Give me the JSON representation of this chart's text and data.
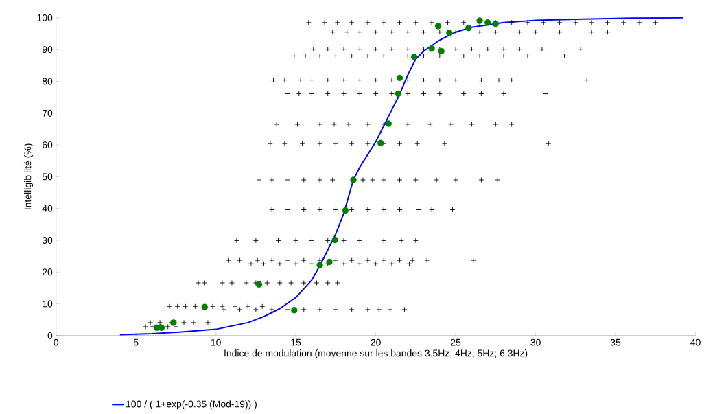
{
  "chart_data": {
    "type": "scatter",
    "xlabel": "Indice de modulation (moyenne sur les bandes 3.5Hz; 4Hz; 5Hz; 6.3Hz)",
    "ylabel": "Intelligibilité (%)",
    "xlim": [
      0,
      40
    ],
    "ylim": [
      0,
      100
    ],
    "xticks": [
      0,
      5,
      10,
      15,
      20,
      25,
      30,
      35,
      40
    ],
    "yticks": [
      0,
      10,
      20,
      30,
      40,
      50,
      60,
      70,
      80,
      90,
      100
    ],
    "grid": false,
    "legend": "bottom",
    "series": [
      {
        "marker": "cross",
        "color": "#000000",
        "x": [
          15.8,
          16.8,
          17.6,
          18.5,
          19.5,
          20.5,
          21.5,
          22.5,
          23.5,
          24.5,
          25.5,
          26.5,
          27.5,
          28.5,
          29.5,
          30.5,
          31.5,
          32.5,
          33.5,
          34.5,
          35.5,
          36.5,
          37.5,
          17.3,
          18.2,
          19.0,
          20,
          21,
          22,
          23,
          24,
          25,
          26.5,
          27.5,
          29,
          30,
          31.5,
          33.5,
          34.5,
          16.1,
          17,
          18,
          19,
          20,
          21,
          22,
          23,
          24,
          25,
          26,
          27,
          28,
          29,
          30.4,
          32.8,
          14.9,
          15.6,
          16.5,
          17.5,
          18.5,
          19.5,
          20.5,
          22,
          23,
          24,
          25.5,
          26.5,
          28,
          29.5,
          31.8,
          13.6,
          14.3,
          15.3,
          16,
          17,
          18,
          19,
          20,
          21,
          22,
          23,
          24,
          25,
          26.6,
          27.7,
          28.5,
          33.2,
          14.5,
          15.2,
          16,
          17,
          18,
          19,
          20,
          21,
          22,
          23,
          24,
          25.5,
          26.6,
          28,
          30.6,
          13.8,
          15.1,
          16.5,
          17.4,
          18.3,
          19.5,
          20.5,
          22,
          23.4,
          24.7,
          26,
          27.5,
          28.5,
          13.4,
          14.3,
          15.4,
          16.5,
          17.5,
          18.5,
          19.5,
          20.5,
          21.5,
          22.6,
          24.3,
          30.8,
          12.7,
          13.5,
          14.5,
          15.5,
          16.5,
          17.3,
          19.2,
          19.8,
          20.5,
          21.5,
          22.5,
          23.8,
          25,
          26.6,
          27.6,
          13.5,
          14.5,
          15.5,
          16.5,
          17.5,
          18.5,
          19.5,
          20.5,
          21.5,
          22.7,
          23.5,
          24.8,
          11.3,
          12.5,
          13.9,
          15,
          16,
          17,
          18,
          19,
          20.5,
          21.6,
          22.5,
          10.8,
          11.5,
          12.6,
          13.5,
          14.5,
          15.5,
          16.5,
          17.5,
          18.5,
          19.5,
          20.5,
          21.5,
          22.3,
          23.2,
          26.1,
          12.2,
          13,
          14,
          15,
          16,
          17,
          18,
          19,
          20,
          21,
          22.1,
          8.9,
          9.3,
          10.4,
          11,
          11.9,
          12.5,
          13.2,
          14,
          14.7,
          15.5,
          16.3,
          17,
          17.6,
          7.1,
          7.6,
          8.1,
          8.7,
          9.8,
          10.4,
          11.2,
          12,
          12.9,
          10.5,
          11.5,
          12.5,
          13.5,
          14.5,
          15.5,
          16.5,
          17.5,
          18.5,
          19.5,
          20.2,
          20.9,
          21.8,
          5.9,
          6.5,
          7.2,
          8,
          8.6,
          9.5,
          5.6,
          6,
          6.5,
          7,
          7.5
        ],
        "values": [
          98.5,
          98.5,
          98.5,
          98.5,
          98.5,
          98.5,
          98.5,
          98.5,
          98.5,
          98.5,
          98.5,
          98.5,
          98.5,
          98.5,
          98.5,
          98.5,
          98.5,
          98.5,
          98.5,
          98.5,
          98.5,
          98.5,
          98.5,
          95.5,
          95.5,
          95.5,
          95.5,
          95.5,
          95.5,
          95.5,
          95.5,
          95.5,
          95.5,
          95.5,
          95.5,
          95.5,
          95.5,
          95.5,
          95.5,
          90.1,
          90.1,
          90.1,
          90.1,
          90.1,
          90.1,
          90.1,
          90.1,
          90.1,
          90.1,
          90.1,
          90.1,
          90.1,
          90.1,
          90.1,
          90.1,
          88,
          88,
          88,
          88,
          88,
          88,
          88,
          88,
          88,
          88,
          88,
          88,
          88,
          88,
          88,
          80.4,
          80.4,
          80.4,
          80.4,
          80.4,
          80.4,
          80.4,
          80.4,
          80.4,
          80.4,
          80.4,
          80.4,
          80.4,
          80.4,
          80.4,
          80.4,
          80.4,
          76.1,
          76.1,
          76.1,
          76.1,
          76.1,
          76.1,
          76.1,
          76.1,
          76.1,
          76.1,
          76.1,
          76.1,
          76.1,
          76.1,
          76.1,
          66.5,
          66.5,
          66.5,
          66.5,
          66.5,
          66.5,
          66.5,
          66.5,
          66.5,
          66.5,
          66.5,
          66.5,
          66.5,
          60.4,
          60.4,
          60.4,
          60.4,
          60.4,
          60.4,
          60.4,
          60.4,
          60.4,
          60.4,
          60.4,
          60.4,
          49,
          49,
          49,
          49,
          49,
          49,
          49,
          49,
          49,
          49,
          49,
          49,
          49,
          49,
          49,
          39.6,
          39.6,
          39.6,
          39.6,
          39.6,
          39.6,
          39.6,
          39.6,
          39.6,
          39.6,
          39.6,
          39.6,
          29.9,
          29.9,
          29.9,
          29.9,
          29.9,
          29.9,
          29.9,
          29.9,
          29.9,
          29.9,
          29.9,
          23.7,
          23.7,
          23.7,
          23.7,
          23.7,
          23.7,
          23.7,
          23.7,
          23.7,
          23.7,
          23.7,
          23.7,
          23.7,
          23.7,
          23.7,
          22.6,
          22.6,
          22.6,
          22.6,
          22.6,
          22.6,
          22.6,
          22.6,
          22.6,
          22.6,
          22.6,
          16.6,
          16.6,
          16.6,
          16.6,
          16.6,
          16.6,
          16.6,
          16.6,
          16.6,
          16.6,
          16.6,
          16.6,
          16.6,
          9.2,
          9.2,
          9.2,
          9.2,
          9.2,
          9.2,
          9.2,
          9.2,
          9.2,
          8.2,
          8.2,
          8.2,
          8.2,
          8.2,
          8.2,
          8.2,
          8.2,
          8.2,
          8.2,
          8.2,
          8.2,
          8.2,
          4.1,
          4.1,
          4.1,
          4.1,
          4.1,
          4.1,
          2.8,
          2.8,
          2.8,
          2.8,
          2.8
        ]
      },
      {
        "marker": "circle",
        "color": "#008000",
        "x": [
          6.3,
          6.6,
          7.35,
          9.3,
          12.7,
          14.9,
          16.5,
          17.1,
          17.45,
          18.1,
          18.6,
          20.3,
          20.8,
          21.4,
          21.5,
          22.4,
          23.5,
          24.1,
          23.9,
          24.6,
          25.8,
          26.5,
          27.0,
          27.5
        ],
        "values": [
          2.5,
          2.5,
          4.1,
          9.0,
          16.1,
          8.0,
          22.2,
          23.2,
          30.1,
          39.4,
          49,
          60.6,
          66.7,
          76.1,
          81.1,
          87.7,
          90.3,
          89.5,
          97.4,
          95.3,
          96.8,
          99.1,
          98.5,
          98.1
        ]
      },
      {
        "type": "line",
        "marker": "none",
        "line_style": "solid",
        "name": "100 / ( 1+exp(-0.35 (Mod-19)) )",
        "color": "#0000ff",
        "x": [
          4,
          6,
          8,
          10,
          12,
          13,
          14,
          15,
          16,
          16.5,
          17,
          17.5,
          18,
          18.6,
          19,
          20,
          21,
          21.5,
          22,
          22.5,
          23,
          24,
          25,
          26,
          28,
          30,
          33,
          36,
          39.2
        ],
        "values": [
          0.3,
          0.6,
          1.2,
          2.0,
          4.1,
          6.0,
          8.5,
          12.0,
          17.5,
          22,
          27,
          32,
          38.5,
          49,
          53,
          61,
          71,
          76,
          82,
          87,
          89.5,
          93,
          95.5,
          97,
          98.5,
          99.2,
          99.6,
          99.9,
          100
        ]
      }
    ]
  }
}
